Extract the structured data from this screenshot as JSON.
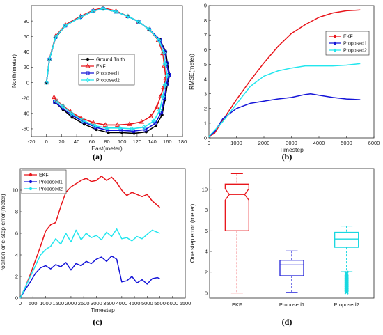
{
  "colors": {
    "ground_truth": "#000000",
    "ekf": "#e8141a",
    "proposed1": "#1414d8",
    "proposed2": "#22e6ee",
    "box_ekf": "#e8141a",
    "box_p1": "#2020d8",
    "box_p2": "#18d8e0"
  },
  "chart_data": [
    {
      "panel": "(a)",
      "type": "line",
      "xlabel": "East(meter)",
      "ylabel": "North(meter)",
      "xlim": [
        -20,
        180
      ],
      "ylim": [
        -70,
        100
      ],
      "xticks": [
        -20,
        0,
        20,
        40,
        60,
        80,
        100,
        120,
        140,
        160,
        180
      ],
      "yticks": [
        -60,
        -40,
        -20,
        0,
        20,
        40,
        60,
        80
      ],
      "legend_position": "center",
      "series": [
        {
          "name": "Ground Truth",
          "key": "ground_truth",
          "marker": "circle",
          "x": [
            0,
            4,
            12,
            25,
            45,
            62,
            75,
            92,
            108,
            122,
            136,
            150,
            158,
            160,
            163,
            160,
            157,
            153,
            145,
            132,
            116,
            100,
            82,
            66,
            50,
            34,
            22,
            12
          ],
          "y": [
            0,
            30,
            58,
            74,
            85,
            93,
            96,
            92,
            86,
            79,
            69,
            56,
            40,
            25,
            10,
            -2,
            -22,
            -42,
            -56,
            -64,
            -66,
            -65,
            -65,
            -61,
            -54,
            -45,
            -35,
            -26
          ]
        },
        {
          "name": "EKF",
          "key": "ekf",
          "marker": "triangle",
          "x": [
            0,
            4,
            12,
            25,
            45,
            62,
            75,
            92,
            108,
            122,
            136,
            148,
            154,
            156,
            158,
            155,
            151,
            146,
            138,
            126,
            110,
            94,
            78,
            62,
            46,
            32,
            22,
            14,
            10
          ],
          "y": [
            0,
            31,
            60,
            75,
            86,
            94,
            97,
            93,
            86,
            79,
            69,
            55,
            38,
            22,
            6,
            -6,
            -18,
            -32,
            -44,
            -51,
            -54,
            -55,
            -55,
            -52,
            -46,
            -38,
            -30,
            -24,
            -19
          ]
        },
        {
          "name": "Proposed1",
          "key": "proposed1",
          "marker": "square",
          "x": [
            0,
            4,
            12,
            25,
            45,
            62,
            75,
            92,
            108,
            122,
            136,
            150,
            157,
            159,
            162,
            159,
            156,
            152,
            144,
            131,
            115,
            99,
            81,
            65,
            49,
            33,
            21,
            11
          ],
          "y": [
            0,
            30,
            59,
            74,
            85,
            93,
            96,
            92,
            86,
            79,
            69,
            56,
            40,
            25,
            10,
            -2,
            -20,
            -39,
            -53,
            -61,
            -63,
            -62,
            -62,
            -58,
            -51,
            -42,
            -33,
            -25
          ]
        },
        {
          "name": "Proposed2",
          "key": "proposed2",
          "marker": "diamond",
          "x": [
            0,
            4,
            12,
            25,
            45,
            62,
            75,
            92,
            108,
            122,
            136,
            149,
            155,
            157,
            160,
            157,
            154,
            150,
            142,
            129,
            113,
            97,
            80,
            64,
            48,
            33,
            22,
            13
          ],
          "y": [
            0,
            30,
            59,
            74,
            85,
            93,
            96,
            92,
            86,
            79,
            69,
            55,
            39,
            24,
            9,
            -3,
            -18,
            -36,
            -50,
            -58,
            -60,
            -59,
            -59,
            -56,
            -49,
            -40,
            -31,
            -24
          ]
        }
      ]
    },
    {
      "panel": "(b)",
      "type": "line",
      "xlabel": "Timestep",
      "ylabel": "RMSE(meter)",
      "xlim": [
        0,
        6000
      ],
      "ylim": [
        0,
        9
      ],
      "xticks": [
        0,
        1000,
        2000,
        3000,
        4000,
        5000,
        6000
      ],
      "yticks": [
        0,
        1,
        2,
        3,
        4,
        5,
        6,
        7,
        8,
        9
      ],
      "legend_position": "top-right",
      "series": [
        {
          "name": "EKF",
          "key": "ekf",
          "x": [
            0,
            200,
            500,
            1000,
            1500,
            2000,
            2500,
            3000,
            3500,
            4000,
            4500,
            5000,
            5500
          ],
          "y": [
            0.1,
            0.3,
            1.2,
            2.6,
            3.9,
            5.1,
            6.2,
            7.1,
            7.7,
            8.2,
            8.5,
            8.65,
            8.7
          ]
        },
        {
          "name": "Proposed1",
          "key": "proposed1",
          "x": [
            0,
            200,
            500,
            1000,
            1500,
            2000,
            2500,
            3000,
            3500,
            3700,
            4000,
            4500,
            5000,
            5500
          ],
          "y": [
            0.1,
            0.4,
            1.3,
            2.0,
            2.35,
            2.5,
            2.65,
            2.75,
            2.95,
            3.0,
            2.9,
            2.75,
            2.65,
            2.6
          ]
        },
        {
          "name": "Proposed2",
          "key": "proposed2",
          "x": [
            0,
            200,
            500,
            1000,
            1500,
            2000,
            2500,
            3000,
            3500,
            4000,
            4500,
            5000,
            5500
          ],
          "y": [
            0.1,
            0.5,
            1.1,
            2.3,
            3.5,
            4.2,
            4.55,
            4.75,
            4.9,
            4.9,
            4.9,
            4.95,
            5.05
          ]
        }
      ]
    },
    {
      "panel": "(c)",
      "type": "line",
      "xlabel": "Timestep",
      "ylabel": "Position one-step error(meter)",
      "xlim": [
        0,
        6500
      ],
      "ylim": [
        0,
        12
      ],
      "xticks": [
        0,
        500,
        1000,
        1500,
        2000,
        2500,
        3000,
        3500,
        4000,
        4500,
        5000,
        5500,
        6000,
        6500
      ],
      "yticks": [
        0,
        2,
        4,
        6,
        8,
        10
      ],
      "legend_position": "top-left",
      "series": [
        {
          "name": "EKF",
          "key": "ekf",
          "x": [
            0,
            200,
            400,
            600,
            800,
            1000,
            1200,
            1400,
            1600,
            1800,
            2000,
            2200,
            2400,
            2600,
            2800,
            3000,
            3200,
            3400,
            3600,
            3800,
            4000,
            4200,
            4400,
            4600,
            4800,
            5000,
            5200,
            5400,
            5500
          ],
          "y": [
            0,
            1.0,
            2.2,
            3.5,
            4.8,
            6.2,
            6.8,
            7.0,
            8.5,
            9.8,
            10.3,
            10.6,
            10.9,
            11.1,
            10.8,
            10.9,
            11.3,
            10.9,
            11.2,
            10.7,
            10.0,
            9.5,
            9.8,
            9.6,
            9.4,
            9.6,
            9.0,
            8.6,
            8.4
          ]
        },
        {
          "name": "Proposed1",
          "key": "proposed1",
          "x": [
            0,
            200,
            400,
            600,
            800,
            1000,
            1200,
            1400,
            1600,
            1800,
            2000,
            2200,
            2400,
            2600,
            2800,
            3000,
            3200,
            3400,
            3600,
            3800,
            4000,
            4200,
            4400,
            4600,
            4800,
            5000,
            5200,
            5400,
            5500
          ],
          "y": [
            0,
            0.8,
            1.5,
            2.3,
            2.8,
            3.0,
            2.7,
            3.1,
            2.9,
            3.3,
            2.6,
            3.2,
            3.0,
            3.4,
            3.2,
            3.6,
            3.8,
            3.4,
            3.9,
            3.6,
            1.5,
            1.6,
            2.0,
            1.4,
            1.7,
            1.3,
            1.8,
            1.9,
            1.8
          ]
        },
        {
          "name": "Proposed2",
          "key": "proposed2",
          "x": [
            0,
            200,
            400,
            600,
            800,
            1000,
            1200,
            1400,
            1600,
            1800,
            2000,
            2200,
            2400,
            2600,
            2800,
            3000,
            3200,
            3400,
            3600,
            3800,
            4000,
            4200,
            4400,
            4600,
            4800,
            5000,
            5200,
            5400,
            5500
          ],
          "y": [
            0,
            1.0,
            2.0,
            3.0,
            4.0,
            4.5,
            4.8,
            5.5,
            5.0,
            6.0,
            5.2,
            6.3,
            5.4,
            6.0,
            5.6,
            5.8,
            5.4,
            6.1,
            5.7,
            6.4,
            5.5,
            5.6,
            5.3,
            5.7,
            5.5,
            5.9,
            6.3,
            6.1,
            6.0
          ]
        }
      ]
    },
    {
      "panel": "(d)",
      "type": "box",
      "xlabel": "",
      "ylabel": "One step error (meter)",
      "ylim": [
        -0.5,
        12
      ],
      "yticks": [
        0,
        2,
        4,
        6,
        8,
        10
      ],
      "categories": [
        "EKF",
        "Proposed1",
        "Proposed2"
      ],
      "boxes": [
        {
          "key": "box_ekf",
          "min": 0,
          "q1": 6.0,
          "median": 9.5,
          "q3": 10.5,
          "max": 11.5,
          "outliers": []
        },
        {
          "key": "box_p1",
          "min": 0.05,
          "q1": 1.65,
          "median": 2.7,
          "q3": 3.15,
          "max": 4.05,
          "outliers": []
        },
        {
          "key": "box_p2",
          "min": 2.05,
          "q1": 4.4,
          "median": 5.2,
          "q3": 5.85,
          "max": 6.45,
          "outliers": [
            0.05,
            0.15,
            0.25,
            0.35,
            0.45,
            0.55,
            0.65,
            0.75,
            0.85,
            0.95,
            1.05,
            1.15,
            1.25,
            1.35,
            1.45,
            1.55,
            1.7,
            1.85,
            1.95
          ]
        }
      ]
    }
  ]
}
